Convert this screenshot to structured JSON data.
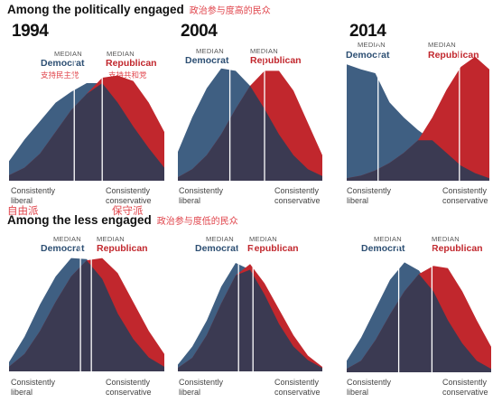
{
  "sections": [
    {
      "title": "Among the politically engaged",
      "title_cn": "政治参与度高的民众"
    },
    {
      "title": "Among the less engaged",
      "title_cn": "政治参与度低的民众"
    }
  ],
  "labels": {
    "median": "MEDIAN",
    "democrat": "Democrat",
    "republican": "Republican",
    "democrat_cn": "支持民主党",
    "republican_cn": "支持共和党",
    "left_axis": [
      "Consistently",
      "liberal"
    ],
    "right_axis": [
      "Consistently",
      "conservative"
    ],
    "left_axis_cn": "自由派",
    "right_axis_cn": "保守派"
  },
  "colors": {
    "democrat": "#3f5f82",
    "republican": "#c1272d",
    "overlap": "#3b3a52"
  },
  "chart_data": [
    {
      "type": "area",
      "group": "politically engaged",
      "year": "1994",
      "x": [
        0,
        1,
        2,
        3,
        4,
        5,
        6,
        7,
        8,
        9,
        10
      ],
      "series": [
        {
          "name": "Democrat",
          "values": [
            0.18,
            0.38,
            0.55,
            0.72,
            0.82,
            0.9,
            0.9,
            0.72,
            0.5,
            0.3,
            0.12
          ]
        },
        {
          "name": "Republican",
          "values": [
            0.05,
            0.12,
            0.25,
            0.45,
            0.65,
            0.8,
            0.95,
            0.97,
            0.92,
            0.72,
            0.45
          ]
        }
      ],
      "median": {
        "Democrat": 4.2,
        "Republican": 6.0
      }
    },
    {
      "type": "area",
      "group": "politically engaged",
      "year": "2004",
      "x": [
        0,
        1,
        2,
        3,
        4,
        5,
        6,
        7,
        8,
        9,
        10
      ],
      "series": [
        {
          "name": "Democrat",
          "values": [
            0.25,
            0.55,
            0.8,
            0.97,
            0.95,
            0.82,
            0.62,
            0.4,
            0.22,
            0.1,
            0.04
          ]
        },
        {
          "name": "Republican",
          "values": [
            0.03,
            0.1,
            0.22,
            0.4,
            0.62,
            0.82,
            0.95,
            0.95,
            0.78,
            0.5,
            0.22
          ]
        }
      ],
      "median": {
        "Democrat": 3.6,
        "Republican": 6.0
      }
    },
    {
      "type": "area",
      "group": "politically engaged",
      "year": "2014",
      "x": [
        0,
        1,
        2,
        3,
        4,
        5,
        6,
        7,
        8,
        9,
        10
      ],
      "series": [
        {
          "name": "Democrat",
          "values": [
            0.92,
            0.88,
            0.85,
            0.62,
            0.5,
            0.4,
            0.32,
            0.22,
            0.12,
            0.06,
            0.02
          ]
        },
        {
          "name": "Republican",
          "values": [
            0.02,
            0.04,
            0.08,
            0.14,
            0.22,
            0.32,
            0.5,
            0.72,
            0.9,
            0.98,
            0.88
          ]
        }
      ],
      "median": {
        "Democrat": 2.2,
        "Republican": 7.9
      }
    },
    {
      "type": "area",
      "group": "less engaged",
      "year": "1994",
      "x": [
        0,
        1,
        2,
        3,
        4,
        5,
        6,
        7,
        8,
        9,
        10
      ],
      "series": [
        {
          "name": "Democrat",
          "values": [
            0.08,
            0.3,
            0.58,
            0.82,
            0.98,
            0.97,
            0.8,
            0.5,
            0.28,
            0.12,
            0.04
          ]
        },
        {
          "name": "Republican",
          "values": [
            0.04,
            0.15,
            0.35,
            0.6,
            0.82,
            0.96,
            0.98,
            0.85,
            0.6,
            0.35,
            0.15
          ]
        }
      ],
      "median": {
        "Democrat": 4.6,
        "Republican": 5.3
      }
    },
    {
      "type": "area",
      "group": "less engaged",
      "year": "2004",
      "x": [
        0,
        1,
        2,
        3,
        4,
        5,
        6,
        7,
        8,
        9,
        10
      ],
      "series": [
        {
          "name": "Democrat",
          "values": [
            0.06,
            0.22,
            0.45,
            0.75,
            0.96,
            0.9,
            0.68,
            0.42,
            0.22,
            0.1,
            0.03
          ]
        },
        {
          "name": "Republican",
          "values": [
            0.03,
            0.12,
            0.32,
            0.6,
            0.85,
            0.95,
            0.78,
            0.55,
            0.32,
            0.14,
            0.04
          ]
        }
      ],
      "median": {
        "Democrat": 4.2,
        "Republican": 5.2
      }
    },
    {
      "type": "area",
      "group": "less engaged",
      "year": "2014",
      "x": [
        0,
        1,
        2,
        3,
        4,
        5,
        6,
        7,
        8,
        9,
        10
      ],
      "series": [
        {
          "name": "Democrat",
          "values": [
            0.1,
            0.3,
            0.55,
            0.8,
            0.95,
            0.88,
            0.7,
            0.45,
            0.25,
            0.1,
            0.03
          ]
        },
        {
          "name": "Republican",
          "values": [
            0.03,
            0.1,
            0.28,
            0.5,
            0.7,
            0.85,
            0.92,
            0.9,
            0.7,
            0.45,
            0.22
          ]
        }
      ],
      "median": {
        "Democrat": 3.6,
        "Republican": 5.9
      }
    }
  ]
}
